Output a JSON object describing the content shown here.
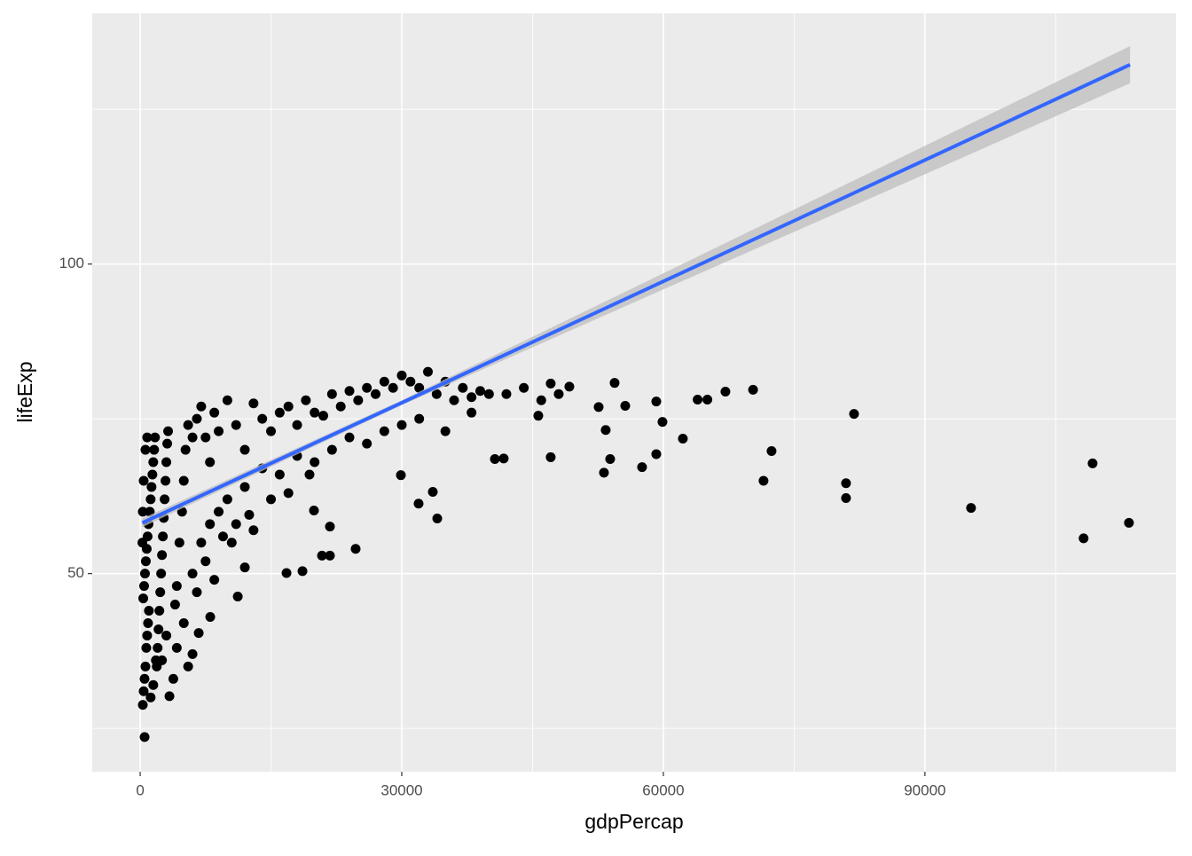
{
  "chart_data": {
    "type": "scatter",
    "x_label": "gdpPercap",
    "y_label": "lifeExp",
    "xlim": [
      -5500,
      118800
    ],
    "ylim": [
      18,
      140.5
    ],
    "xticks": [
      0,
      30000,
      60000,
      90000
    ],
    "yticks": [
      50,
      100
    ],
    "xminor": [
      15000,
      45000,
      75000,
      105000
    ],
    "yminor": [
      25,
      75,
      125
    ],
    "grid": true,
    "series": [
      {
        "type": "scatter",
        "color": "#000000",
        "x": [
          300,
          400,
          500,
          600,
          700,
          800,
          900,
          1000,
          350,
          450,
          550,
          650,
          750,
          850,
          950,
          1100,
          1200,
          1300,
          1400,
          1500,
          1600,
          1700,
          1900,
          2000,
          2100,
          2200,
          2300,
          2400,
          2500,
          2600,
          2700,
          2800,
          2900,
          3000,
          3100,
          3200,
          1200,
          1500,
          1800,
          2500,
          3000,
          3356,
          3800,
          4000,
          4200,
          4500,
          4800,
          5000,
          5200,
          5500,
          6000,
          6500,
          7000,
          7500,
          8000,
          8500,
          9000,
          10000,
          11000,
          12000,
          13000,
          14000,
          15000,
          16000,
          17000,
          18000,
          19000,
          20000,
          21000,
          22000,
          23000,
          24000,
          25000,
          26000,
          27000,
          28000,
          29000,
          30000,
          31000,
          32000,
          33000,
          34000,
          35000,
          36000,
          37000,
          38000,
          39000,
          40000,
          42000,
          44000,
          46000,
          48000,
          5000,
          6000,
          7000,
          8000,
          9000,
          10000,
          11000,
          12000,
          13000,
          14000,
          15000,
          16000,
          17000,
          18000,
          20000,
          22000,
          24000,
          26000,
          28000,
          30000,
          32000,
          35000,
          38000,
          12500,
          9500,
          6500,
          7500,
          10500,
          8500,
          4200,
          5500,
          6000,
          508,
          6712,
          8034,
          11190,
          12000,
          109230,
          113400,
          108200,
          95290,
          81870,
          80950,
          80950,
          72410,
          71490,
          70290,
          67120,
          65050,
          63930,
          62240,
          59900,
          59190,
          59190,
          57560,
          55630,
          54410,
          53900,
          53390,
          53190,
          52580,
          49220,
          47080,
          47080,
          45660,
          41690,
          40680,
          34070,
          33560,
          31930,
          29900,
          24710,
          21760,
          21760,
          20850,
          18610,
          16780,
          19930,
          19420,
          300,
          400,
          600,
          800,
          250
        ],
        "values": [
          28.8,
          31,
          33,
          35,
          38,
          40,
          42,
          44,
          46,
          48,
          50,
          52,
          54,
          56,
          58,
          60,
          62,
          64,
          66,
          68,
          70,
          72,
          35,
          38,
          41,
          44,
          47,
          50,
          53,
          56,
          59,
          62,
          65,
          68,
          71,
          73,
          30,
          32,
          36,
          36,
          40,
          30.2,
          33,
          45,
          48,
          55,
          60,
          65,
          70,
          74,
          72,
          75,
          77,
          72,
          68,
          76,
          73,
          78,
          74,
          70,
          77.5,
          75,
          73,
          76,
          77,
          74,
          78,
          76,
          75.5,
          79,
          77,
          79.5,
          78,
          80,
          79,
          81,
          80,
          82,
          81,
          80,
          82.6,
          79,
          81,
          78,
          80,
          78.5,
          79.5,
          79,
          79,
          80,
          78,
          79,
          42,
          50,
          55,
          58,
          60,
          62,
          58,
          64,
          57,
          67,
          62,
          66,
          63,
          69,
          68,
          70,
          72,
          71,
          73,
          74,
          75,
          73,
          76,
          59.5,
          56,
          47,
          52,
          55,
          49,
          38,
          35,
          37,
          23.6,
          40.4,
          43,
          46.3,
          51,
          67.8,
          58.2,
          55.7,
          60.6,
          75.8,
          64.6,
          62.2,
          69.8,
          65.0,
          79.7,
          79.4,
          78.1,
          78.1,
          71.8,
          74.5,
          69.3,
          77.8,
          67.2,
          77.1,
          80.8,
          68.5,
          73.2,
          66.3,
          76.9,
          80.2,
          80.7,
          68.8,
          75.5,
          68.6,
          68.5,
          58.9,
          63.2,
          61.3,
          65.9,
          54.0,
          57.6,
          52.9,
          52.9,
          50.4,
          50.1,
          60.2,
          66.0,
          60,
          65,
          70,
          72,
          55
        ]
      },
      {
        "type": "line",
        "color": "#3366ff",
        "band_color": "#bdbdbd",
        "x": [
          241,
          30000,
          60000,
          90000,
          113523
        ],
        "values": [
          58.2,
          77.6,
          97.2,
          116.8,
          132.2
        ],
        "lower": [
          57.5,
          77.2,
          95.9,
          114.5,
          129.2
        ],
        "upper": [
          58.9,
          78.0,
          98.5,
          119.1,
          135.2
        ]
      }
    ]
  }
}
